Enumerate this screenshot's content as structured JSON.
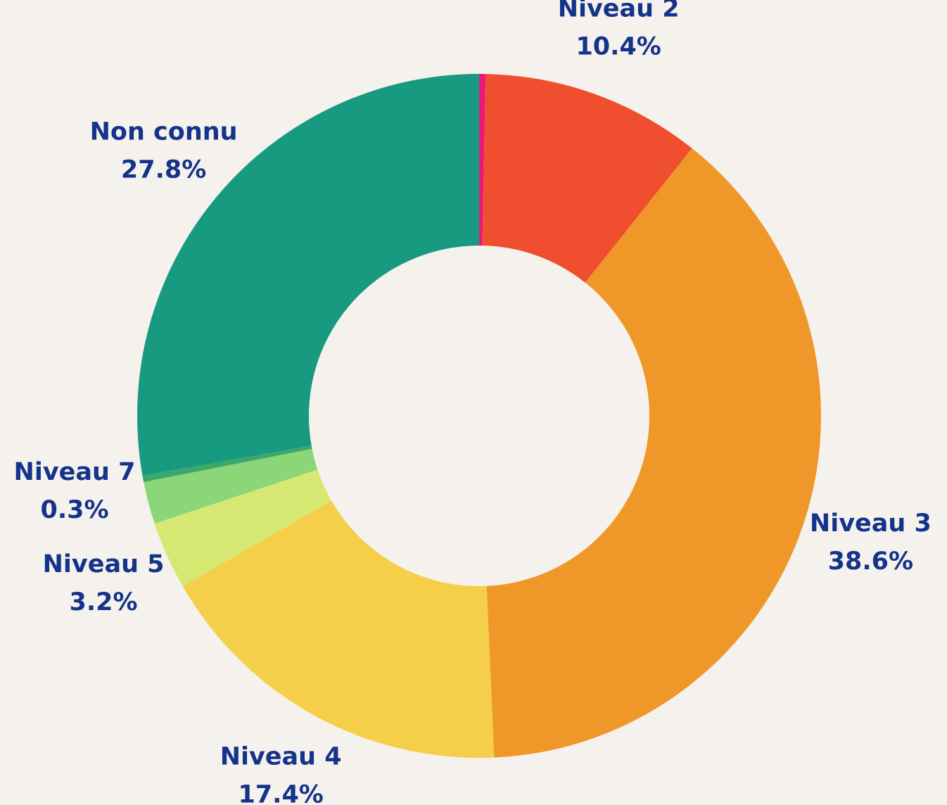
{
  "chart_data": {
    "type": "donut",
    "categories": [
      null,
      "Niveau 2",
      "Niveau 3",
      "Niveau 4",
      "Niveau 5",
      null,
      "Niveau 7",
      "Non connu"
    ],
    "values": [
      0.3,
      10.4,
      38.6,
      17.4,
      3.2,
      2.0,
      0.3,
      27.8
    ],
    "value_labels": [
      null,
      "10.4%",
      "38.6%",
      "17.4%",
      "3.2%",
      null,
      "0.3%",
      "27.8%"
    ],
    "colors": [
      "#e8197a",
      "#ef4f2e",
      "#ef9829",
      "#f5cf4a",
      "#d4e872",
      "#8cd67a",
      "#3aa86a",
      "#179a80"
    ]
  }
}
